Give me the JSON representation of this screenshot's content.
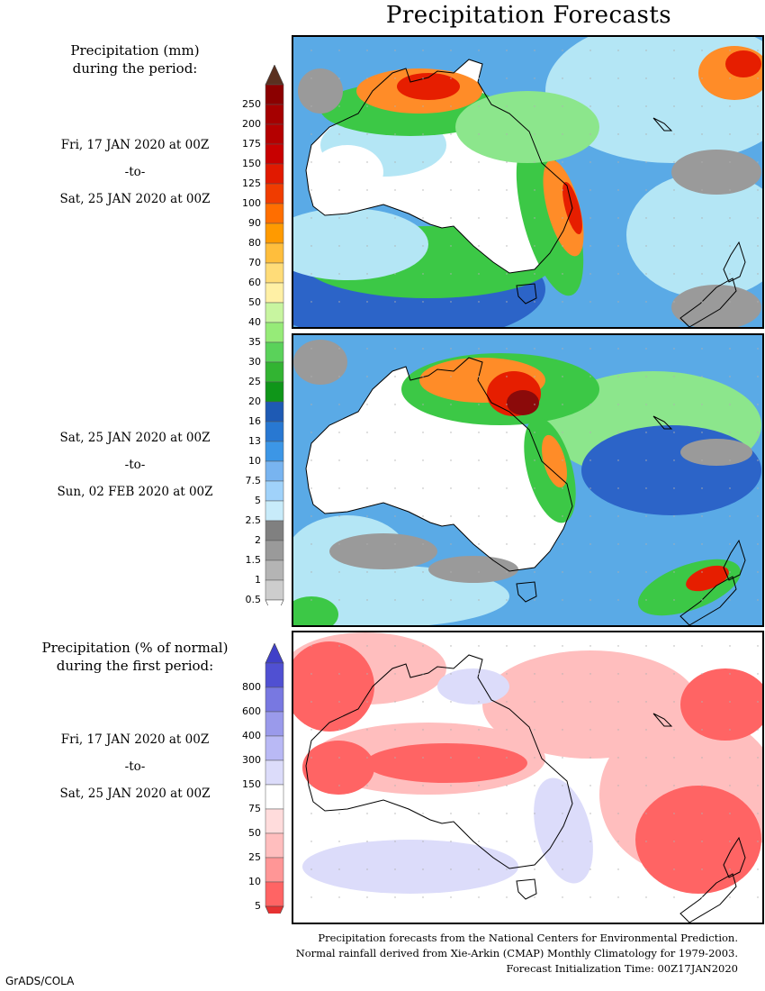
{
  "title": "Precipitation Forecasts",
  "legend_mm": {
    "heading": [
      "Precipitation (mm)",
      "during the period:"
    ],
    "labels": [
      "250",
      "200",
      "175",
      "150",
      "125",
      "100",
      "90",
      "80",
      "70",
      "60",
      "50",
      "40",
      "35",
      "30",
      "25",
      "20",
      "16",
      "13",
      "10",
      "7.5",
      "5",
      "2.5",
      "2",
      "1.5",
      "1",
      "0.5"
    ],
    "colors": [
      "#8b0000",
      "#a50000",
      "#b40000",
      "#c80000",
      "#e11900",
      "#f03c00",
      "#ff6e00",
      "#ff9a00",
      "#ffbe3c",
      "#ffdc78",
      "#fff0a5",
      "#c8f5a0",
      "#96eb78",
      "#5ad25a",
      "#32b432",
      "#0f9619",
      "#1e5ab4",
      "#2878d2",
      "#3c96e6",
      "#78b4f0",
      "#a0d2fa",
      "#c8ebfa",
      "#808080",
      "#9a9a9a",
      "#b4b4b4",
      "#cdcdcd"
    ],
    "top_arrow_color": "#5a3020",
    "bottom_arrow_color": "#ffffff"
  },
  "legend_pct": {
    "heading": [
      "Precipitation (% of normal)",
      "during the first period:"
    ],
    "labels": [
      "800",
      "600",
      "400",
      "300",
      "150",
      "75",
      "50",
      "25",
      "10",
      "5"
    ],
    "colors": [
      "#5050d2",
      "#7878e1",
      "#9a9aeb",
      "#b9b9f5",
      "#dcdcfa",
      "#ffffff",
      "#ffdcdc",
      "#ffbebe",
      "#ff9696",
      "#ff6464"
    ],
    "top_arrow_color": "#4040c8",
    "bottom_arrow_color": "#e63232"
  },
  "periods": [
    {
      "from": "Fri, 17 JAN 2020 at 00Z",
      "sep": "-to-",
      "to": "Sat, 25 JAN 2020 at 00Z"
    },
    {
      "from": "Sat, 25 JAN 2020 at 00Z",
      "sep": "-to-",
      "to": "Sun, 02 FEB 2020 at 00Z"
    },
    {
      "from": "Fri, 17 JAN 2020 at 00Z",
      "sep": "-to-",
      "to": "Sat, 25 JAN 2020 at 00Z"
    }
  ],
  "footer": [
    "Precipitation forecasts from the National Centers for Environmental Prediction.",
    "Normal rainfall derived from Xie-Arkin (CMAP) Monthly Climatology for 1979-2003.",
    "Forecast Initialization Time: 00Z17JAN2020"
  ],
  "credit": "GrADS/COLA",
  "map_colors": {
    "land_dry": "#ffffff",
    "ocean_light": "#b4e6f5",
    "ocean_mid": "#5aaae6",
    "ocean_deep": "#2c64c8",
    "green_light": "#8ce68c",
    "green": "#3cc846",
    "green_dark": "#1e9628",
    "orange": "#ff8c28",
    "red": "#e61e00",
    "darkred": "#8b0a0a",
    "gray": "#9a9a9a",
    "gray_dark": "#7a7a7a",
    "pct_red": "#ff6464",
    "pct_pink": "#ffbebe",
    "pct_lav": "#dcdcfa",
    "coast": "#000000"
  }
}
